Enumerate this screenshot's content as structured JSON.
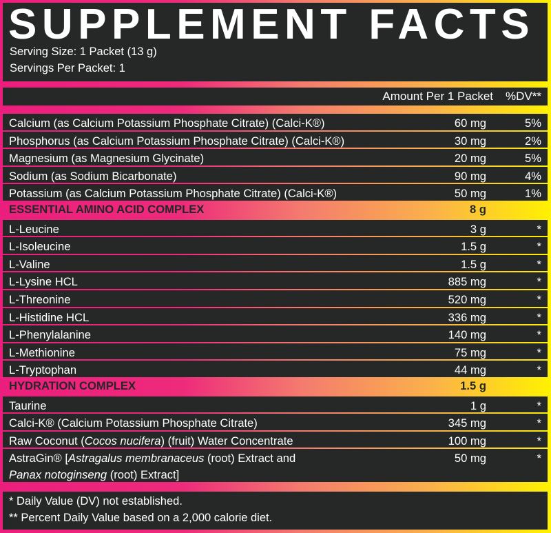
{
  "title": "SUPPLEMENT FACTS",
  "serving_size": "Serving Size: 1 Packet (13 g)",
  "servings_per": "Servings Per Packet: 1",
  "header": {
    "amount": "Amount Per 1 Packet",
    "dv": "%DV**"
  },
  "colors": {
    "panel": "#262828",
    "gradient_start": "#ec1e7d",
    "gradient_end": "#fff200",
    "text": "#ffffff"
  },
  "rows": [
    {
      "name": [
        {
          "t": "Calcium (as Calcium Potassium Phosphate Citrate) (Calci-K®)"
        }
      ],
      "amount": "60 mg",
      "dv": "5%"
    },
    {
      "name": [
        {
          "t": "Phosphorus (as Calcium Potassium Phosphate Citrate) (Calci-K®)"
        }
      ],
      "amount": "30 mg",
      "dv": "2%"
    },
    {
      "name": [
        {
          "t": "Magnesium (as Magnesium Glycinate)"
        }
      ],
      "amount": "20 mg",
      "dv": "5%"
    },
    {
      "name": [
        {
          "t": "Sodium (as Sodium Bicarbonate)"
        }
      ],
      "amount": "90 mg",
      "dv": "4%"
    },
    {
      "name": [
        {
          "t": "Potassium (as Calcium Potassium Phosphate Citrate) (Calci-K®)"
        }
      ],
      "amount": "50 mg",
      "dv": "1%"
    },
    {
      "section": true,
      "name": [
        {
          "t": "ESSENTIAL AMINO ACID COMPLEX"
        }
      ],
      "amount": "8 g",
      "dv": ""
    },
    {
      "name": [
        {
          "t": "L-Leucine"
        }
      ],
      "amount": "3 g",
      "dv": "*"
    },
    {
      "name": [
        {
          "t": "L-Isoleucine"
        }
      ],
      "amount": "1.5 g",
      "dv": "*"
    },
    {
      "name": [
        {
          "t": "L-Valine"
        }
      ],
      "amount": "1.5 g",
      "dv": "*"
    },
    {
      "name": [
        {
          "t": "L-Lysine HCL"
        }
      ],
      "amount": "885 mg",
      "dv": "*"
    },
    {
      "name": [
        {
          "t": "L-Threonine"
        }
      ],
      "amount": "520 mg",
      "dv": "*"
    },
    {
      "name": [
        {
          "t": "L-Histidine HCL"
        }
      ],
      "amount": "336 mg",
      "dv": "*"
    },
    {
      "name": [
        {
          "t": "L-Phenylalanine"
        }
      ],
      "amount": "140 mg",
      "dv": "*"
    },
    {
      "name": [
        {
          "t": "L-Methionine"
        }
      ],
      "amount": "75 mg",
      "dv": "*"
    },
    {
      "name": [
        {
          "t": "L-Tryptophan"
        }
      ],
      "amount": "44 mg",
      "dv": "*"
    },
    {
      "section": true,
      "name": [
        {
          "t": "HYDRATION COMPLEX"
        }
      ],
      "amount": "1.5 g",
      "dv": ""
    },
    {
      "name": [
        {
          "t": "Taurine"
        }
      ],
      "amount": "1 g",
      "dv": "*"
    },
    {
      "name": [
        {
          "t": "Calci-K® (Calcium Potassium Phosphate Citrate)"
        }
      ],
      "amount": "345 mg",
      "dv": "*"
    },
    {
      "name": [
        {
          "t": "Raw Coconut ("
        },
        {
          "t": "Cocos nucifera",
          "i": true
        },
        {
          "t": ") (fruit) Water Concentrate"
        }
      ],
      "amount": "100 mg",
      "dv": "*"
    },
    {
      "tall": true,
      "name": [
        {
          "t": "AstraGin® ["
        },
        {
          "t": "Astragalus membranaceus",
          "i": true
        },
        {
          "t": " (root) Extract and"
        },
        {
          "br": true
        },
        {
          "t": "Panax notoginseng",
          "i": true
        },
        {
          "t": " (root) Extract]"
        }
      ],
      "amount": "50 mg",
      "dv": "*"
    }
  ],
  "footer": {
    "note1": "* Daily Value (DV) not established.",
    "note2": "** Percent Daily Value based on a 2,000 calorie diet."
  }
}
